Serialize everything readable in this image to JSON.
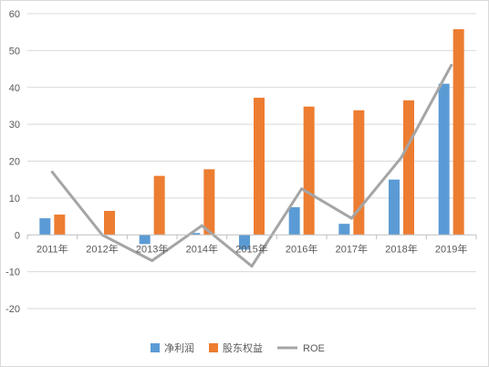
{
  "chart_data": {
    "type": "bar",
    "categories": [
      "2011年",
      "2012年",
      "2013年",
      "2014年",
      "2015年",
      "2016年",
      "2017年",
      "2018年",
      "2019年"
    ],
    "series": [
      {
        "name": "净利润",
        "kind": "bar",
        "color": "#5b9bd5",
        "values": [
          4.5,
          0,
          -2.5,
          0.5,
          -4,
          7.5,
          3,
          15,
          41
        ]
      },
      {
        "name": "股东权益",
        "kind": "bar",
        "color": "#ed7d31",
        "values": [
          5.5,
          6.5,
          16,
          17.8,
          37.2,
          34.8,
          33.8,
          36.5,
          55.8
        ]
      },
      {
        "name": "ROE",
        "kind": "line",
        "color": "#a5a5a5",
        "values": [
          17,
          0,
          -7,
          2.5,
          -8.5,
          12.5,
          4.5,
          21,
          46
        ]
      }
    ],
    "ylim": [
      -20,
      60
    ],
    "yticks": [
      -20,
      -10,
      0,
      10,
      20,
      30,
      40,
      50,
      60
    ],
    "grid": true,
    "legend": "bottom"
  }
}
